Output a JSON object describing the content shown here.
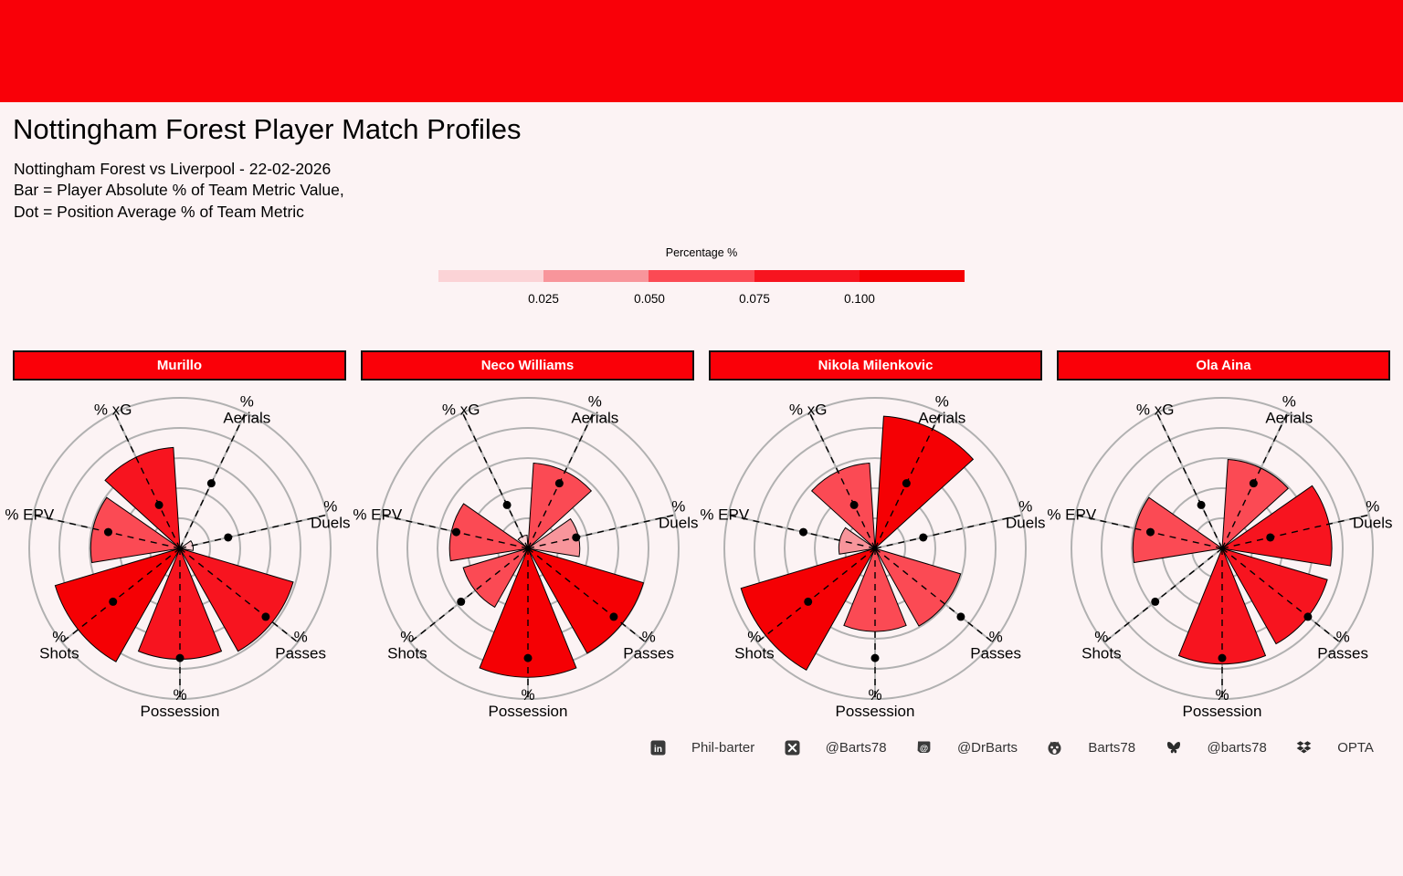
{
  "page": {
    "band_color": "#F90008",
    "background_color": "#FCF3F4"
  },
  "header": {
    "title": "Nottingham Forest Player Match Profiles",
    "subtitle_lines": [
      "Nottingham Forest vs Liverpool - 22-02-2026",
      "Bar = Player Absolute % of Team Metric Value,",
      "Dot = Position Average % of Team Metric"
    ]
  },
  "legend": {
    "title": "Percentage %",
    "ticks": [
      "0.025",
      "0.050",
      "0.075",
      "0.100"
    ],
    "bin_colors": [
      "#FBD3D6",
      "#F8959B",
      "#FB4A54",
      "#F7141F",
      "#F50004"
    ]
  },
  "chart_data": {
    "type": "polar_bar",
    "title": "Nottingham Forest Player Match Profiles",
    "scale_max": 0.125,
    "ring_values": [
      0.025,
      0.05,
      0.075,
      0.1,
      0.125
    ],
    "grid_color": "#B1B1B1",
    "header_fill": "#FA0008",
    "color_bins": {
      "thresholds": [
        0.025,
        0.05,
        0.075,
        0.1
      ],
      "colors": [
        "#FBD3D6",
        "#F8959B",
        "#FB4A54",
        "#F7141F",
        "#F50004"
      ]
    },
    "axes": [
      {
        "key": "aerials",
        "label_lines": [
          "%",
          "Aerials"
        ],
        "angle": 25.714
      },
      {
        "key": "duels",
        "label_lines": [
          "%",
          "Duels"
        ],
        "angle": 77.143
      },
      {
        "key": "passes",
        "label_lines": [
          "%",
          "Passes"
        ],
        "angle": 128.571
      },
      {
        "key": "possession",
        "label_lines": [
          "%",
          "Possession"
        ],
        "angle": 180
      },
      {
        "key": "shots",
        "label_lines": [
          "%",
          "Shots"
        ],
        "angle": 231.429
      },
      {
        "key": "epv",
        "label_lines": [
          "% EPV"
        ],
        "angle": 282.857
      },
      {
        "key": "xg",
        "label_lines": [
          "% xG"
        ],
        "angle": 334.286
      }
    ],
    "position_average": [
      0.06,
      0.041,
      0.091,
      0.091,
      0.071,
      0.061,
      0.04
    ],
    "series": [
      {
        "name": "Murillo",
        "values": [
          0.0,
          0.011,
          0.098,
          0.092,
          0.108,
          0.074,
          0.084
        ]
      },
      {
        "name": "Neco Williams",
        "values": [
          0.071,
          0.043,
          0.1,
          0.107,
          0.056,
          0.065,
          0.011
        ]
      },
      {
        "name": "Nikola Milenkovic",
        "values": [
          0.11,
          0.0,
          0.074,
          0.069,
          0.116,
          0.03,
          0.071
        ]
      },
      {
        "name": "Ola Aina",
        "values": [
          0.074,
          0.091,
          0.091,
          0.096,
          0.0,
          0.074,
          0.0
        ]
      }
    ]
  },
  "footer": {
    "items": [
      {
        "icon": "linkedin-icon",
        "label": "Phil-barter"
      },
      {
        "icon": "x-icon",
        "label": "@Barts78"
      },
      {
        "icon": "mastodon-icon",
        "label": "@DrBarts"
      },
      {
        "icon": "github-icon",
        "label": "Barts78"
      },
      {
        "icon": "bluesky-icon",
        "label": "@barts78"
      },
      {
        "icon": "dropbox-icon",
        "label": "OPTA"
      }
    ]
  }
}
